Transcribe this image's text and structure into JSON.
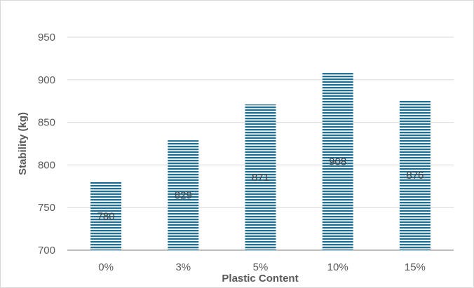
{
  "chart_data": {
    "type": "bar",
    "title": "",
    "xlabel": "Plastic Content",
    "ylabel": "Stability (kg)",
    "categories": [
      "0%",
      "3%",
      "5%",
      "10%",
      "15%"
    ],
    "values": [
      780,
      829,
      871,
      908,
      876
    ],
    "data_labels": [
      "780",
      "829",
      "871",
      "908",
      "876"
    ],
    "ylim": [
      700,
      950
    ],
    "yticks": [
      700,
      750,
      800,
      850,
      900,
      950
    ],
    "grid": true,
    "legend": "none",
    "bar_color": "#1f6f94",
    "bar_pattern": "horizontal-stripes"
  }
}
